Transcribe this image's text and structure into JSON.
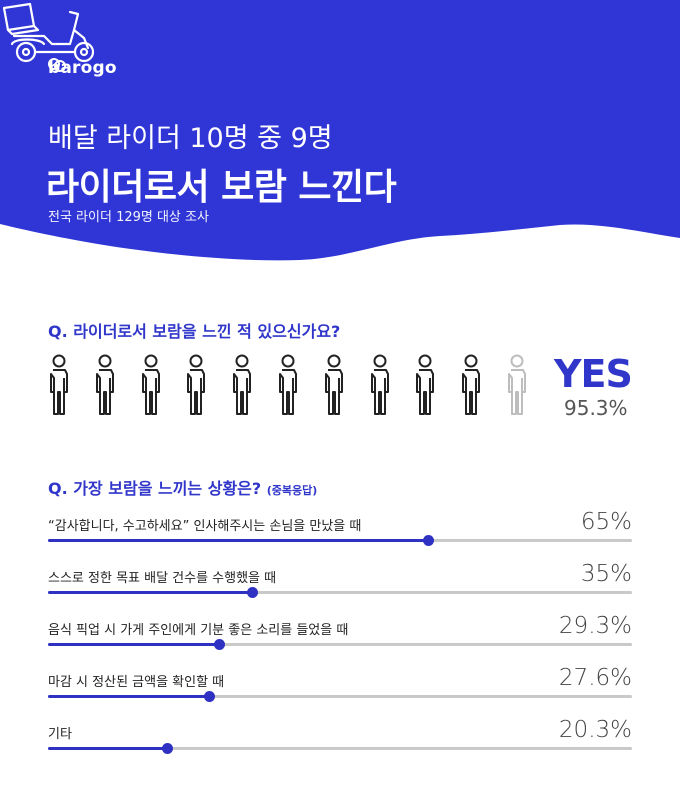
{
  "brand": {
    "name": "barogo"
  },
  "header": {
    "title_line1": "배달 라이더 10명 중 9명",
    "title_line2": "라이더로서 보람 느낀다",
    "subtitle": "전국 라이더 129명 대상 조사",
    "color": "#3036d6"
  },
  "question1": {
    "text": "Q. 라이더로서 보람을 느낀 적 있으신가요?",
    "answer": "YES",
    "percent_label": "95.3%",
    "icons_total": 11,
    "icons_highlighted": 10
  },
  "question2": {
    "text": "Q. 가장 보람을 느끼는 상황은?",
    "note": "(중복응답)"
  },
  "chart_data": {
    "type": "bar",
    "categories": [
      "“감사합니다, 수고하세요” 인사해주시는 손님을 만났을 때",
      "스스로 정한 목표 배달 건수를 수행했을 때",
      "음식 픽업 시 가게 주인에게 기분 좋은 소리를 들었을 때",
      "마감 시 정산된 금액을 확인할 때",
      "기타"
    ],
    "values": [
      65,
      35,
      29.3,
      27.6,
      20.3
    ],
    "value_labels": [
      "65%",
      "35%",
      "29.3%",
      "27.6%",
      "20.3%"
    ],
    "xlim": [
      0,
      100
    ],
    "bar_color": "#2f31c2",
    "track_color": "#c9c9c9"
  }
}
